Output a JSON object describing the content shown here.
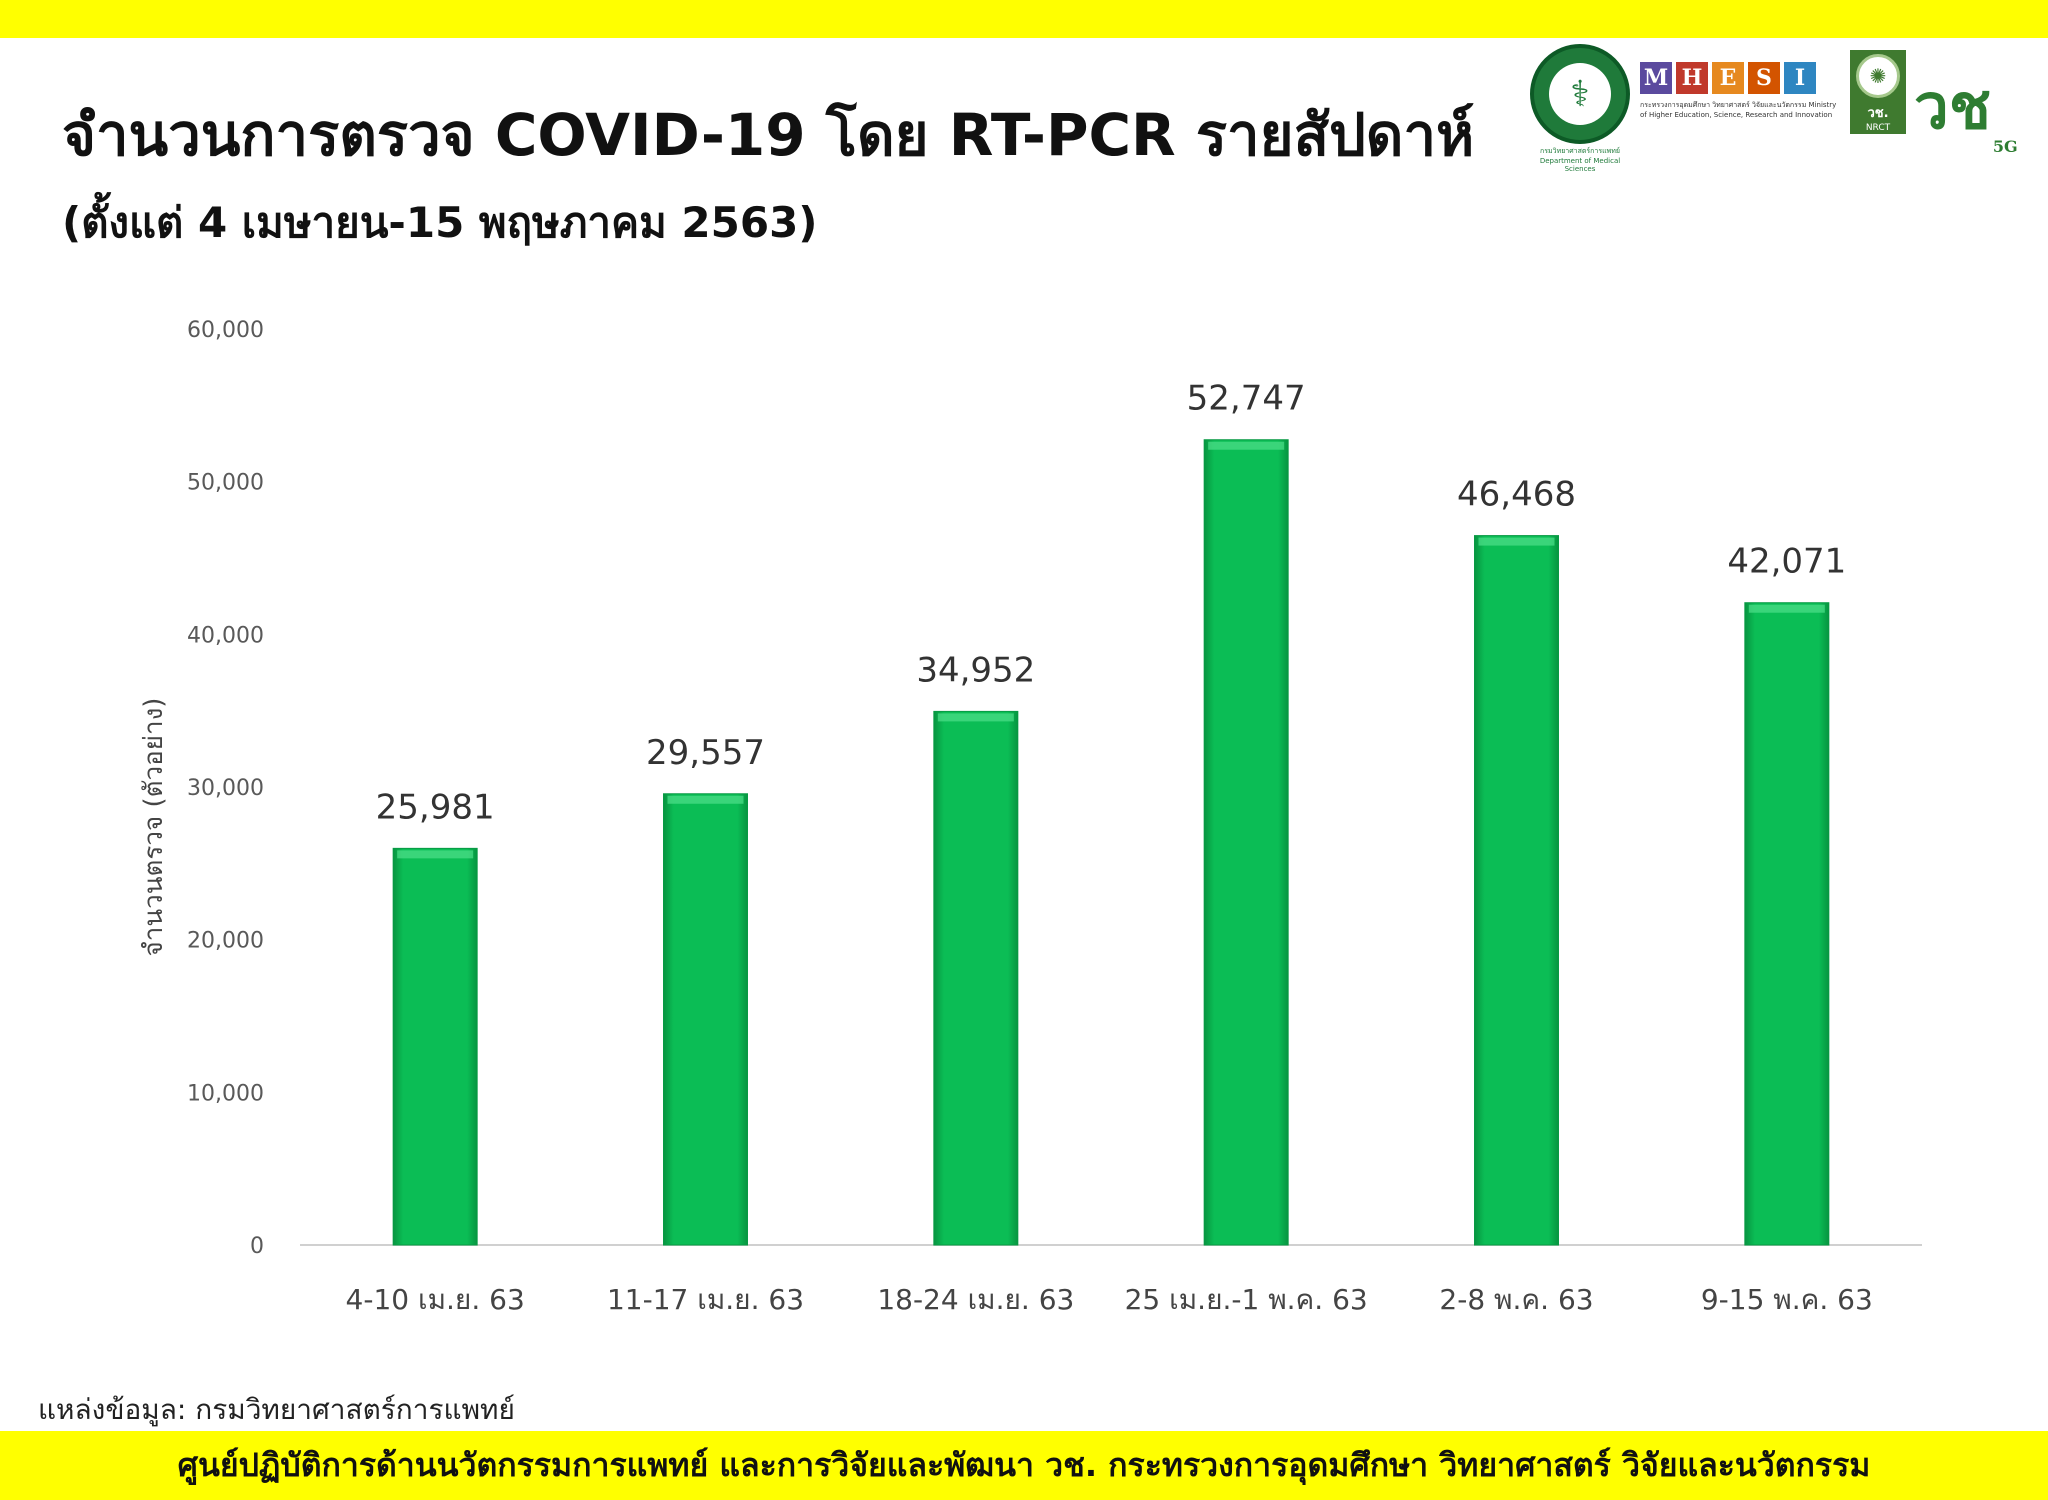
{
  "header": {
    "title": "จำนวนการตรวจ COVID-19 โดย RT-PCR รายสัปดาห์",
    "subtitle": "(ตั้งแต่ 4 เมษายน-15 พฤษภาคม 2563)"
  },
  "logos": {
    "moph_caption": "กรมวิทยาศาสตร์การแพทย์ Department of Medical Sciences",
    "mhesi_letters": [
      "M",
      "H",
      "E",
      "S",
      "I"
    ],
    "mhesi_caption": "กระทรวงการอุดมศึกษา วิทยาศาสตร์ วิจัยและนวัตกรรม Ministry of Higher Education, Science, Research and Innovation",
    "nrct_abbr": "วช.",
    "nrct_name": "NRCT",
    "brand_mark": "วช",
    "brand_suffix": "5G"
  },
  "colors": {
    "band": "#ffff00",
    "bar_fill": "#0bbd55",
    "bar_edge": "#089a44",
    "m": "#5b4a9e",
    "h": "#c0392b",
    "e": "#e6891f",
    "s": "#d35400",
    "i": "#2e86c1"
  },
  "chart_data": {
    "type": "bar",
    "categories": [
      "4-10 เม.ย. 63",
      "11-17 เม.ย. 63",
      "18-24 เม.ย. 63",
      "25 เม.ย.-1 พ.ค. 63",
      "2-8 พ.ค. 63",
      "9-15 พ.ค. 63"
    ],
    "values": [
      25981,
      29557,
      34952,
      52747,
      46468,
      42071
    ],
    "data_labels": [
      "25,981",
      "29,557",
      "34,952",
      "52,747",
      "46,468",
      "42,071"
    ],
    "yticks": [
      0,
      10000,
      20000,
      30000,
      40000,
      50000,
      60000
    ],
    "ytick_labels": [
      "0",
      "10,000",
      "20,000",
      "30,000",
      "40,000",
      "50,000",
      "60,000"
    ],
    "ylabel": "จำนวนตรวจ (ตัวอย่าง)",
    "xlabel": "",
    "ylim": [
      0,
      60000
    ],
    "grid": false
  },
  "footer": {
    "source": "แหล่งข้อมูล: กรมวิทยาศาสตร์การแพทย์",
    "org": "ศูนย์ปฏิบัติการด้านนวัตกรรมการแพทย์ และการวิจัยและพัฒนา   วช.   กระทรวงการอุดมศึกษา วิทยาศาสตร์ วิจัยและนวัตกรรม"
  }
}
